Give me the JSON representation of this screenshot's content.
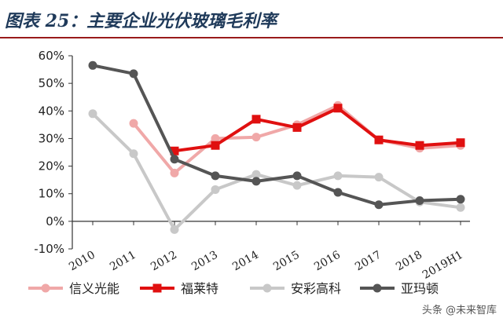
{
  "figure_title": "图表 25：主要企业光伏玻璃毛利率",
  "watermark": "头条 @未来智库",
  "colors": {
    "title_rule": "#9a1b1b",
    "axis": "#333333"
  },
  "chart_data": {
    "type": "line",
    "categories": [
      "2010",
      "2011",
      "2012",
      "2013",
      "2014",
      "2015",
      "2016",
      "2017",
      "2018",
      "2019H1"
    ],
    "ylim": [
      -10,
      60
    ],
    "yticks": [
      -10,
      0,
      10,
      20,
      30,
      40,
      50,
      60
    ],
    "ytick_labels": [
      "-10%",
      "0%",
      "10%",
      "20%",
      "30%",
      "40%",
      "50%",
      "60%"
    ],
    "grid": false,
    "legend_position": "bottom",
    "series": [
      {
        "name": "信义光能",
        "color": "#f0a8a8",
        "marker": "circle",
        "line_width": 4,
        "values": [
          null,
          35.5,
          17.5,
          30.0,
          30.5,
          35.0,
          42.0,
          29.5,
          26.5,
          27.5
        ]
      },
      {
        "name": "福莱特",
        "color": "#e01010",
        "marker": "square",
        "line_width": 4,
        "values": [
          null,
          null,
          25.5,
          27.5,
          37.0,
          34.0,
          41.0,
          29.5,
          27.5,
          28.5
        ]
      },
      {
        "name": "安彩高科",
        "color": "#c8c8c8",
        "marker": "circle",
        "line_width": 4,
        "values": [
          39.0,
          24.5,
          -3.0,
          11.5,
          17.0,
          13.0,
          16.5,
          16.0,
          7.0,
          5.0
        ]
      },
      {
        "name": "亚玛顿",
        "color": "#555555",
        "marker": "circle",
        "line_width": 4,
        "values": [
          56.5,
          53.5,
          22.5,
          16.5,
          14.5,
          16.5,
          10.5,
          6.0,
          7.5,
          8.0
        ]
      }
    ]
  }
}
